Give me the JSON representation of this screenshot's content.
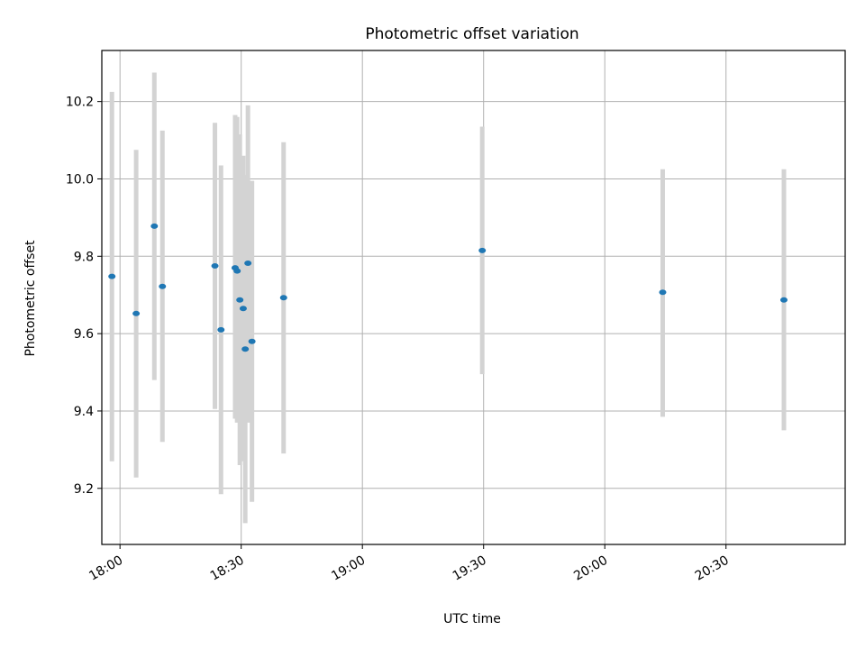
{
  "chart_data": {
    "type": "scatter",
    "title": "Photometric offset variation",
    "xlabel": "UTC time",
    "ylabel": "Photometric offset",
    "xlim": [
      "17:55:30",
      "20:59:30"
    ],
    "ylim": [
      9.055,
      10.332
    ],
    "x_ticks": [
      "18:00",
      "18:30",
      "19:00",
      "19:30",
      "20:00",
      "20:30"
    ],
    "y_ticks": [
      "9.2",
      "9.4",
      "9.6",
      "9.8",
      "10.0",
      "10.2"
    ],
    "grid": true,
    "point_color": "#1f77b4",
    "errorbar_color": "#d3d3d3",
    "points": [
      {
        "time": "17:58:00",
        "value": 9.748,
        "low": 9.27,
        "high": 10.225
      },
      {
        "time": "18:04:00",
        "value": 9.652,
        "low": 9.228,
        "high": 10.075
      },
      {
        "time": "18:08:30",
        "value": 9.878,
        "low": 9.48,
        "high": 10.275
      },
      {
        "time": "18:10:30",
        "value": 9.722,
        "low": 9.32,
        "high": 10.125
      },
      {
        "time": "18:23:30",
        "value": 9.775,
        "low": 9.405,
        "high": 10.145
      },
      {
        "time": "18:25:00",
        "value": 9.61,
        "low": 9.185,
        "high": 10.035
      },
      {
        "time": "18:28:30",
        "value": 9.77,
        "low": 9.38,
        "high": 10.165
      },
      {
        "time": "18:29:00",
        "value": 9.762,
        "low": 9.37,
        "high": 10.16
      },
      {
        "time": "18:29:40",
        "value": 9.687,
        "low": 9.26,
        "high": 10.115
      },
      {
        "time": "18:30:30",
        "value": 9.665,
        "low": 9.27,
        "high": 10.06
      },
      {
        "time": "18:31:00",
        "value": 9.56,
        "low": 9.11,
        "high": 10.01
      },
      {
        "time": "18:31:40",
        "value": 9.782,
        "low": 9.37,
        "high": 10.19
      },
      {
        "time": "18:32:40",
        "value": 9.58,
        "low": 9.165,
        "high": 9.995
      },
      {
        "time": "18:40:30",
        "value": 9.693,
        "low": 9.29,
        "high": 10.095
      },
      {
        "time": "19:29:40",
        "value": 9.815,
        "low": 9.495,
        "high": 10.135
      },
      {
        "time": "20:14:20",
        "value": 9.707,
        "low": 9.385,
        "high": 10.025
      },
      {
        "time": "20:44:20",
        "value": 9.687,
        "low": 9.35,
        "high": 10.025
      }
    ]
  }
}
